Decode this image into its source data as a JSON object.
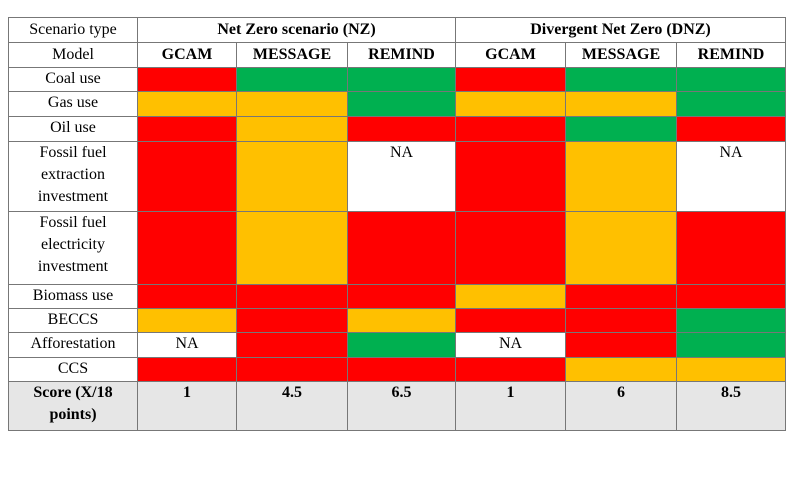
{
  "header": {
    "group_label": "Scenario type",
    "groups": [
      "Net Zero scenario (NZ)",
      "Divergent Net Zero (DNZ)"
    ],
    "model_label": "Model",
    "models": [
      "GCAM",
      "MESSAGE",
      "REMIND",
      "GCAM",
      "MESSAGE",
      "REMIND"
    ]
  },
  "rows": [
    {
      "label": "Coal use",
      "cells": [
        {
          "color": "#ff0000"
        },
        {
          "color": "#00b050"
        },
        {
          "color": "#00b050"
        },
        {
          "color": "#ff0000"
        },
        {
          "color": "#00b050"
        },
        {
          "color": "#00b050"
        }
      ]
    },
    {
      "label": "Gas use",
      "cells": [
        {
          "color": "#ffc000"
        },
        {
          "color": "#ffc000"
        },
        {
          "color": "#00b050"
        },
        {
          "color": "#ffc000"
        },
        {
          "color": "#ffc000"
        },
        {
          "color": "#00b050"
        }
      ]
    },
    {
      "label": "Oil use",
      "cells": [
        {
          "color": "#ff0000"
        },
        {
          "color": "#ffc000"
        },
        {
          "color": "#ff0000"
        },
        {
          "color": "#ff0000"
        },
        {
          "color": "#00b050"
        },
        {
          "color": "#ff0000"
        }
      ]
    },
    {
      "label": "Fossil fuel extraction investment",
      "cells": [
        {
          "color": "#ff0000"
        },
        {
          "color": "#ffc000"
        },
        {
          "color": "#ffffff",
          "text": "NA"
        },
        {
          "color": "#ff0000"
        },
        {
          "color": "#ffc000"
        },
        {
          "color": "#ffffff",
          "text": "NA"
        }
      ]
    },
    {
      "label": "Fossil fuel electricity investment",
      "cells": [
        {
          "color": "#ff0000"
        },
        {
          "color": "#ffc000"
        },
        {
          "color": "#ff0000"
        },
        {
          "color": "#ff0000"
        },
        {
          "color": "#ffc000"
        },
        {
          "color": "#ff0000"
        }
      ]
    },
    {
      "label": "Biomass use",
      "cells": [
        {
          "color": "#ff0000"
        },
        {
          "color": "#ff0000"
        },
        {
          "color": "#ff0000"
        },
        {
          "color": "#ffc000"
        },
        {
          "color": "#ff0000"
        },
        {
          "color": "#ff0000"
        }
      ]
    },
    {
      "label": "BECCS",
      "cells": [
        {
          "color": "#ffc000"
        },
        {
          "color": "#ff0000"
        },
        {
          "color": "#ffc000"
        },
        {
          "color": "#ff0000"
        },
        {
          "color": "#ff0000"
        },
        {
          "color": "#00b050"
        }
      ]
    },
    {
      "label": "Afforestation",
      "cells": [
        {
          "color": "#ffffff",
          "text": "NA"
        },
        {
          "color": "#ff0000"
        },
        {
          "color": "#00b050"
        },
        {
          "color": "#ffffff",
          "text": "NA"
        },
        {
          "color": "#ff0000"
        },
        {
          "color": "#00b050"
        }
      ]
    },
    {
      "label": "CCS",
      "cells": [
        {
          "color": "#ff0000"
        },
        {
          "color": "#ff0000"
        },
        {
          "color": "#ff0000"
        },
        {
          "color": "#ff0000"
        },
        {
          "color": "#ffc000"
        },
        {
          "color": "#ffc000"
        }
      ]
    }
  ],
  "score": {
    "label": "Score (X/18 points)",
    "values": [
      1,
      4.5,
      6.5,
      1,
      6,
      8.5
    ]
  }
}
